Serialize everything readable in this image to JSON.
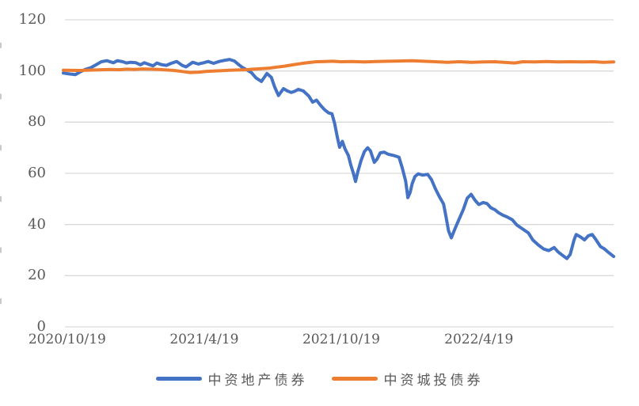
{
  "chart_data": {
    "type": "line",
    "title": "",
    "grid": true,
    "legend_position": "bottom",
    "colors": {
      "grid": "#D9D9D9",
      "minor_tick": "#C9C9C9",
      "axis_text": "#595959",
      "background": "#FFFFFF"
    },
    "y_axis": {
      "min": 0,
      "max": 120,
      "tick_step": 20,
      "tick_labels": [
        "0",
        "20",
        "40",
        "60",
        "80",
        "100",
        "120"
      ]
    },
    "x_axis": {
      "ticks": [
        {
          "label": "2020/10/19",
          "pos": 0.007
        },
        {
          "label": "2021/4/19",
          "pos": 0.256
        },
        {
          "label": "2021/10/19",
          "pos": 0.505
        },
        {
          "label": "2022/4/19",
          "pos": 0.755
        }
      ]
    },
    "series": [
      {
        "name": "中资地产债券",
        "color": "#4472C4",
        "points": [
          [
            0.0,
            99.2
          ],
          [
            0.012,
            98.8
          ],
          [
            0.022,
            98.6
          ],
          [
            0.032,
            99.8
          ],
          [
            0.04,
            100.6
          ],
          [
            0.05,
            101.3
          ],
          [
            0.06,
            102.5
          ],
          [
            0.069,
            103.6
          ],
          [
            0.079,
            104.0
          ],
          [
            0.091,
            103.2
          ],
          [
            0.098,
            104.0
          ],
          [
            0.108,
            103.6
          ],
          [
            0.115,
            103.1
          ],
          [
            0.122,
            103.4
          ],
          [
            0.132,
            103.2
          ],
          [
            0.14,
            102.4
          ],
          [
            0.147,
            103.2
          ],
          [
            0.155,
            102.6
          ],
          [
            0.163,
            102.0
          ],
          [
            0.17,
            103.1
          ],
          [
            0.178,
            102.5
          ],
          [
            0.187,
            102.2
          ],
          [
            0.196,
            103.0
          ],
          [
            0.206,
            103.7
          ],
          [
            0.216,
            102.2
          ],
          [
            0.223,
            101.6
          ],
          [
            0.235,
            103.4
          ],
          [
            0.245,
            102.7
          ],
          [
            0.255,
            103.2
          ],
          [
            0.263,
            103.7
          ],
          [
            0.273,
            103.0
          ],
          [
            0.283,
            103.7
          ],
          [
            0.294,
            104.2
          ],
          [
            0.302,
            104.5
          ],
          [
            0.311,
            103.9
          ],
          [
            0.318,
            102.6
          ],
          [
            0.325,
            101.4
          ],
          [
            0.334,
            100.4
          ],
          [
            0.342,
            99.3
          ],
          [
            0.35,
            97.3
          ],
          [
            0.36,
            95.9
          ],
          [
            0.37,
            99.0
          ],
          [
            0.378,
            97.5
          ],
          [
            0.384,
            93.7
          ],
          [
            0.391,
            90.4
          ],
          [
            0.4,
            93.1
          ],
          [
            0.407,
            92.2
          ],
          [
            0.414,
            91.6
          ],
          [
            0.42,
            92.0
          ],
          [
            0.427,
            92.8
          ],
          [
            0.436,
            92.2
          ],
          [
            0.446,
            90.2
          ],
          [
            0.453,
            87.8
          ],
          [
            0.46,
            88.6
          ],
          [
            0.468,
            86.4
          ],
          [
            0.475,
            84.8
          ],
          [
            0.482,
            83.6
          ],
          [
            0.488,
            83.3
          ],
          [
            0.493,
            79.5
          ],
          [
            0.498,
            74.0
          ],
          [
            0.502,
            70.2
          ],
          [
            0.507,
            72.5
          ],
          [
            0.512,
            69.5
          ],
          [
            0.518,
            67.0
          ],
          [
            0.522,
            63.5
          ],
          [
            0.527,
            60.0
          ],
          [
            0.531,
            56.8
          ],
          [
            0.535,
            60.5
          ],
          [
            0.541,
            65.0
          ],
          [
            0.547,
            68.5
          ],
          [
            0.553,
            70.0
          ],
          [
            0.558,
            68.8
          ],
          [
            0.565,
            64.3
          ],
          [
            0.57,
            65.5
          ],
          [
            0.576,
            68.0
          ],
          [
            0.583,
            68.3
          ],
          [
            0.59,
            67.5
          ],
          [
            0.6,
            67.0
          ],
          [
            0.61,
            66.3
          ],
          [
            0.616,
            62.0
          ],
          [
            0.622,
            57.0
          ],
          [
            0.626,
            50.5
          ],
          [
            0.63,
            52.5
          ],
          [
            0.634,
            56.0
          ],
          [
            0.639,
            58.8
          ],
          [
            0.645,
            59.8
          ],
          [
            0.653,
            59.3
          ],
          [
            0.662,
            59.6
          ],
          [
            0.669,
            57.5
          ],
          [
            0.676,
            54.0
          ],
          [
            0.683,
            51.0
          ],
          [
            0.691,
            48.0
          ],
          [
            0.695,
            43.5
          ],
          [
            0.7,
            37.5
          ],
          [
            0.705,
            34.8
          ],
          [
            0.712,
            38.5
          ],
          [
            0.719,
            42.0
          ],
          [
            0.727,
            46.0
          ],
          [
            0.734,
            50.3
          ],
          [
            0.741,
            51.8
          ],
          [
            0.748,
            49.5
          ],
          [
            0.755,
            47.8
          ],
          [
            0.763,
            48.6
          ],
          [
            0.77,
            48.2
          ],
          [
            0.777,
            46.5
          ],
          [
            0.784,
            45.8
          ],
          [
            0.791,
            44.6
          ],
          [
            0.799,
            43.6
          ],
          [
            0.806,
            43.0
          ],
          [
            0.816,
            41.8
          ],
          [
            0.824,
            39.8
          ],
          [
            0.835,
            38.2
          ],
          [
            0.845,
            36.7
          ],
          [
            0.853,
            34.0
          ],
          [
            0.863,
            32.0
          ],
          [
            0.873,
            30.4
          ],
          [
            0.882,
            29.8
          ],
          [
            0.892,
            31.0
          ],
          [
            0.899,
            29.3
          ],
          [
            0.906,
            28.1
          ],
          [
            0.915,
            26.7
          ],
          [
            0.921,
            28.3
          ],
          [
            0.928,
            34.0
          ],
          [
            0.932,
            36.1
          ],
          [
            0.94,
            35.1
          ],
          [
            0.947,
            34.0
          ],
          [
            0.954,
            35.6
          ],
          [
            0.961,
            36.1
          ],
          [
            0.968,
            34.0
          ],
          [
            0.976,
            31.4
          ],
          [
            0.983,
            30.5
          ],
          [
            0.99,
            29.2
          ],
          [
            1.0,
            27.5
          ]
        ]
      },
      {
        "name": "中资城投债券",
        "color": "#ED7D31",
        "points": [
          [
            0.0,
            100.3
          ],
          [
            0.029,
            100.2
          ],
          [
            0.058,
            100.4
          ],
          [
            0.086,
            100.6
          ],
          [
            0.101,
            100.5
          ],
          [
            0.115,
            100.7
          ],
          [
            0.129,
            100.6
          ],
          [
            0.144,
            100.8
          ],
          [
            0.158,
            100.7
          ],
          [
            0.173,
            100.6
          ],
          [
            0.187,
            100.4
          ],
          [
            0.201,
            100.2
          ],
          [
            0.216,
            99.8
          ],
          [
            0.23,
            99.4
          ],
          [
            0.245,
            99.5
          ],
          [
            0.259,
            99.8
          ],
          [
            0.273,
            100.0
          ],
          [
            0.288,
            100.1
          ],
          [
            0.302,
            100.3
          ],
          [
            0.317,
            100.4
          ],
          [
            0.331,
            100.5
          ],
          [
            0.345,
            100.7
          ],
          [
            0.36,
            100.9
          ],
          [
            0.374,
            101.1
          ],
          [
            0.388,
            101.5
          ],
          [
            0.403,
            101.9
          ],
          [
            0.417,
            102.4
          ],
          [
            0.432,
            102.9
          ],
          [
            0.446,
            103.3
          ],
          [
            0.46,
            103.6
          ],
          [
            0.475,
            103.7
          ],
          [
            0.489,
            103.8
          ],
          [
            0.504,
            103.6
          ],
          [
            0.525,
            103.7
          ],
          [
            0.547,
            103.5
          ],
          [
            0.568,
            103.7
          ],
          [
            0.59,
            103.8
          ],
          [
            0.612,
            103.9
          ],
          [
            0.633,
            104.0
          ],
          [
            0.655,
            103.8
          ],
          [
            0.676,
            103.6
          ],
          [
            0.698,
            103.4
          ],
          [
            0.719,
            103.6
          ],
          [
            0.741,
            103.4
          ],
          [
            0.763,
            103.5
          ],
          [
            0.784,
            103.6
          ],
          [
            0.806,
            103.3
          ],
          [
            0.82,
            103.1
          ],
          [
            0.835,
            103.6
          ],
          [
            0.856,
            103.5
          ],
          [
            0.878,
            103.7
          ],
          [
            0.899,
            103.5
          ],
          [
            0.921,
            103.6
          ],
          [
            0.942,
            103.5
          ],
          [
            0.964,
            103.6
          ],
          [
            0.981,
            103.4
          ],
          [
            1.0,
            103.5
          ]
        ]
      }
    ]
  }
}
